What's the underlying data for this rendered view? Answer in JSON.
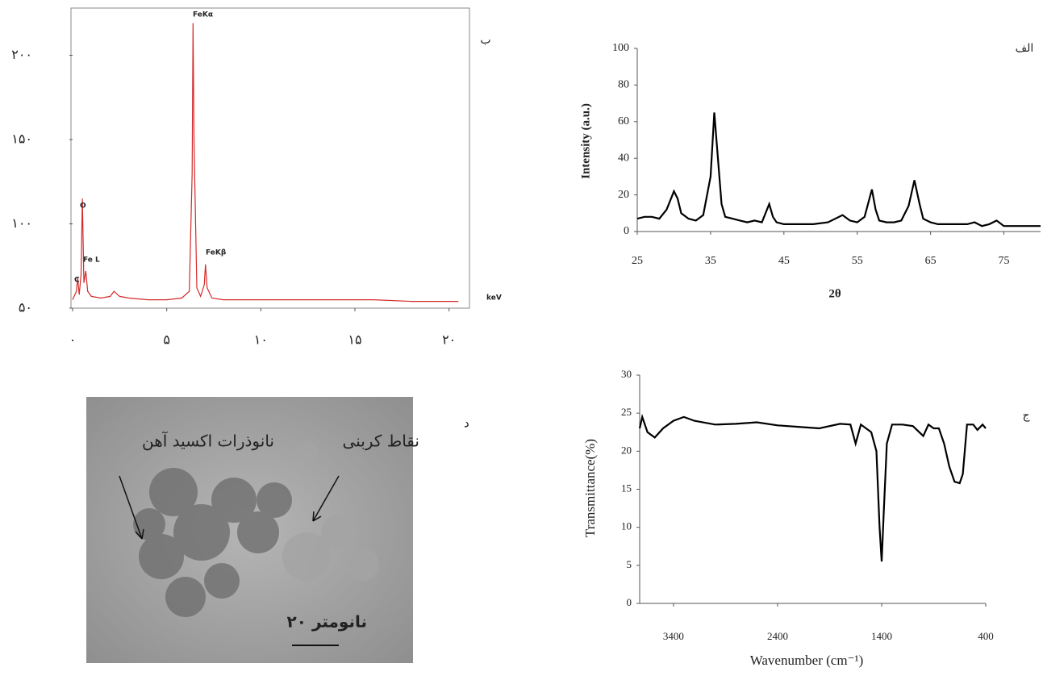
{
  "chart_data": [
    {
      "type": "line",
      "panel_label": "الف",
      "ylabel": "Intensity (a.u.)",
      "xlabel": "2θ",
      "color": "#000000",
      "x": [
        25,
        26,
        27,
        28,
        29,
        30,
        30.5,
        31,
        32,
        33,
        34,
        35,
        35.5,
        36,
        36.5,
        37,
        38,
        39,
        40,
        41,
        42,
        43,
        43.5,
        44,
        45,
        47,
        49,
        51,
        53,
        54,
        55,
        56,
        57,
        57.5,
        58,
        59,
        60,
        61,
        62,
        62.8,
        63.5,
        64,
        65,
        66,
        68,
        70,
        71,
        72,
        73,
        74,
        75,
        77,
        79,
        80
      ],
      "values": [
        7,
        8,
        8,
        7,
        12,
        22,
        18,
        10,
        7,
        6,
        9,
        30,
        65,
        40,
        15,
        8,
        7,
        6,
        5,
        6,
        5,
        15,
        8,
        5,
        4,
        4,
        4,
        5,
        9,
        6,
        5,
        8,
        23,
        12,
        6,
        5,
        5,
        6,
        14,
        28,
        15,
        7,
        5,
        4,
        4,
        4,
        5,
        3,
        4,
        6,
        3,
        3,
        3,
        3
      ],
      "xlim": [
        25,
        80
      ],
      "xticks": [
        25,
        35,
        45,
        55,
        65,
        75
      ],
      "ylim": [
        0,
        100
      ],
      "yticks": [
        0,
        20,
        40,
        60,
        80,
        100
      ]
    },
    {
      "type": "line",
      "panel_label": "ب",
      "color": "#d42a2a",
      "annotations": [
        "C",
        "O",
        "Fe L",
        "FeKα",
        "FeKβ",
        "keV"
      ],
      "x": [
        0,
        0.2,
        0.27,
        0.35,
        0.45,
        0.52,
        0.6,
        0.7,
        0.8,
        1,
        1.5,
        2,
        2.2,
        2.5,
        3,
        4,
        5,
        5.8,
        6.2,
        6.35,
        6.4,
        6.45,
        6.6,
        6.8,
        7.0,
        7.06,
        7.15,
        7.4,
        8,
        10,
        12,
        14,
        16,
        18,
        20,
        20.5
      ],
      "values": [
        55,
        60,
        68,
        58,
        70,
        115,
        65,
        72,
        60,
        57,
        56,
        57,
        60,
        57,
        56,
        55,
        55,
        56,
        60,
        130,
        219,
        150,
        62,
        57,
        64,
        76,
        62,
        56,
        55,
        55,
        55,
        55,
        55,
        54,
        54,
        54
      ],
      "xlim": [
        0,
        21
      ],
      "xticks": [
        {
          "value": 0,
          "label": "۰"
        },
        {
          "value": 5,
          "label": "۵"
        },
        {
          "value": 10,
          "label": "۱۰"
        },
        {
          "value": 15,
          "label": "۱۵"
        },
        {
          "value": 20,
          "label": "۲۰"
        }
      ],
      "ylim": [
        50,
        228
      ],
      "yticks": [
        {
          "value": 50,
          "label": "۵۰"
        },
        {
          "value": 100,
          "label": "۱۰۰"
        },
        {
          "value": 150,
          "label": "۱۵۰"
        },
        {
          "value": 200,
          "label": "۲۰۰"
        }
      ]
    },
    {
      "type": "line",
      "panel_label": "ج",
      "ylabel": "Transmittance(%)",
      "xlabel": "Wavenumber (cm⁻¹)",
      "color": "#000000",
      "x": [
        3725,
        3700,
        3650,
        3580,
        3500,
        3400,
        3300,
        3200,
        3000,
        2800,
        2600,
        2400,
        2200,
        2000,
        1800,
        1700,
        1650,
        1600,
        1550,
        1500,
        1450,
        1420,
        1400,
        1380,
        1350,
        1300,
        1200,
        1100,
        1000,
        950,
        900,
        850,
        800,
        750,
        700,
        650,
        620,
        580,
        520,
        480,
        430,
        400
      ],
      "values": [
        23,
        24.5,
        22.5,
        21.8,
        23,
        24,
        24.5,
        24,
        23.5,
        23.6,
        23.8,
        23.4,
        23.2,
        23,
        23.6,
        23.5,
        21,
        23.5,
        23,
        22.5,
        20,
        10,
        5.5,
        12,
        21,
        23.5,
        23.5,
        23.3,
        22,
        23.5,
        23,
        23,
        21,
        18,
        16,
        15.8,
        17,
        23.5,
        23.5,
        22.8,
        23.5,
        23
      ],
      "xlim": [
        3725,
        400
      ],
      "xticks": [
        3400,
        2400,
        1400,
        400
      ],
      "ylim": [
        0,
        30
      ],
      "yticks": [
        0,
        5,
        10,
        15,
        20,
        25,
        30
      ]
    }
  ],
  "image": {
    "panel_label": "د",
    "label_carbon": "نقاط کربنی",
    "label_iron": "نانوذرات اکسید آهن",
    "scale": "۲۰ نانومتر"
  }
}
